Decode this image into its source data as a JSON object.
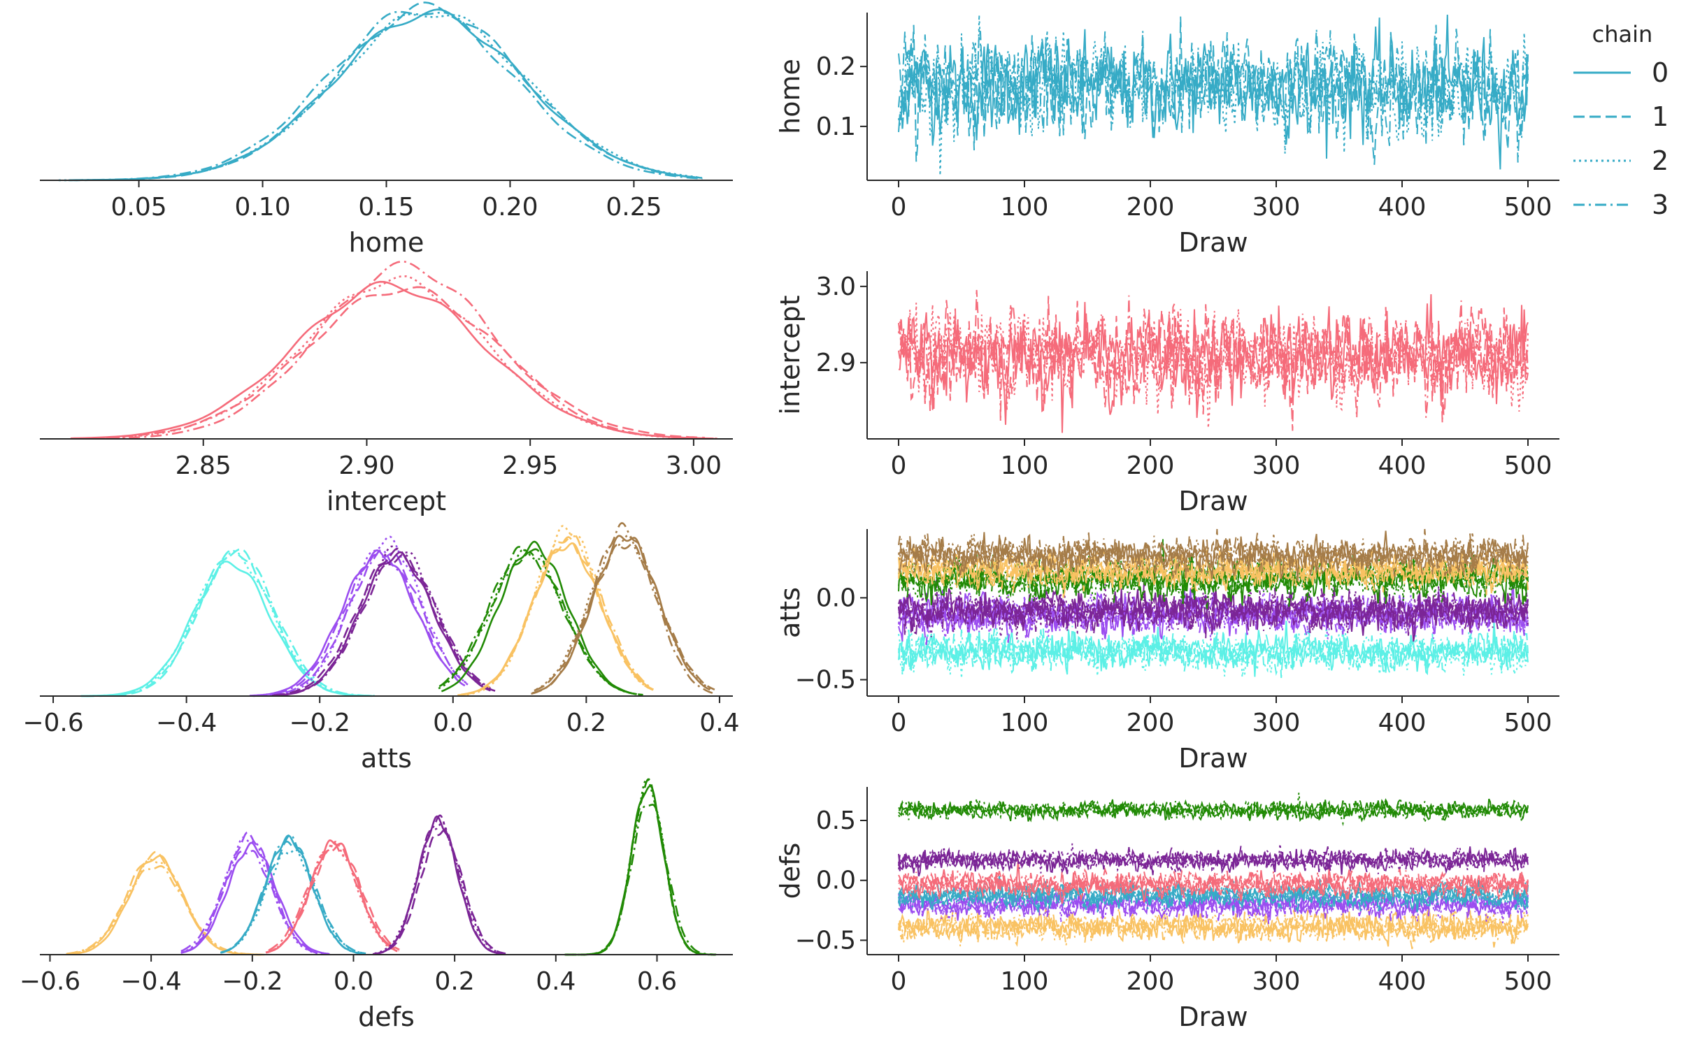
{
  "figure": {
    "legend": {
      "title": "chain",
      "placement": "top-right",
      "entries": [
        {
          "label": "0",
          "dash": "solid"
        },
        {
          "label": "1",
          "dash": "dashed"
        },
        {
          "label": "2",
          "dash": "dotted"
        },
        {
          "label": "3",
          "dash": "dashdot"
        }
      ]
    }
  },
  "chart_data": [
    {
      "type": "line",
      "panel": "density",
      "xlabel": "home",
      "xticks": [
        "0.05",
        "0.10",
        "0.15",
        "0.20",
        "0.25"
      ],
      "xtick_values": [
        0.05,
        0.1,
        0.15,
        0.2,
        0.25
      ],
      "xlim": [
        0.01,
        0.29
      ],
      "series": [
        {
          "color": "#36abc6",
          "mean": 0.166,
          "sd": 0.039,
          "xmin": 0.02,
          "xmax": 0.275
        }
      ]
    },
    {
      "type": "line",
      "panel": "trace",
      "xlabel": "Draw",
      "ylabel": "home",
      "xticks": [
        "0",
        "100",
        "200",
        "300",
        "400",
        "500"
      ],
      "xtick_values": [
        0,
        100,
        200,
        300,
        400,
        500
      ],
      "xlim": [
        -25,
        525
      ],
      "yticks": [
        "0.1",
        "0.2"
      ],
      "ytick_values": [
        0.1,
        0.2
      ],
      "ylim": [
        0.01,
        0.29
      ],
      "series": [
        {
          "color": "#36abc6",
          "mean": 0.166,
          "sd": 0.039
        }
      ]
    },
    {
      "type": "line",
      "panel": "density",
      "xlabel": "intercept",
      "xticks": [
        "2.85",
        "2.90",
        "2.95",
        "3.00"
      ],
      "xtick_values": [
        2.85,
        2.9,
        2.95,
        3.0
      ],
      "xlim": [
        2.8,
        3.012
      ],
      "series": [
        {
          "color": "#f56b7a",
          "mean": 2.909,
          "sd": 0.028,
          "xmin": 2.812,
          "xmax": 3.005
        }
      ]
    },
    {
      "type": "line",
      "panel": "trace",
      "xlabel": "Draw",
      "ylabel": "intercept",
      "xticks": [
        "0",
        "100",
        "200",
        "300",
        "400",
        "500"
      ],
      "xtick_values": [
        0,
        100,
        200,
        300,
        400,
        500
      ],
      "xlim": [
        -25,
        525
      ],
      "yticks": [
        "2.9",
        "3.0"
      ],
      "ytick_values": [
        2.9,
        3.0
      ],
      "ylim": [
        2.8,
        3.02
      ],
      "series": [
        {
          "color": "#f56b7a",
          "mean": 2.909,
          "sd": 0.028
        }
      ]
    },
    {
      "type": "line",
      "panel": "density",
      "xlabel": "atts",
      "xticks": [
        "−0.6",
        "−0.4",
        "−0.2",
        "0.0",
        "0.2",
        "0.4"
      ],
      "xtick_values": [
        -0.6,
        -0.4,
        -0.2,
        0.0,
        0.2,
        0.4
      ],
      "xlim": [
        -0.62,
        0.42
      ],
      "series": [
        {
          "color": "#5cf0e6",
          "mean": -0.33,
          "sd": 0.055,
          "xmin": -0.555,
          "xmax": -0.12
        },
        {
          "color": "#9b4df0",
          "mean": -0.105,
          "sd": 0.055,
          "xmin": -0.3,
          "xmax": 0.02
        },
        {
          "color": "#7b2596",
          "mean": -0.08,
          "sd": 0.055,
          "xmin": -0.27,
          "xmax": 0.06
        },
        {
          "color": "#218a05",
          "mean": 0.115,
          "sd": 0.055,
          "xmin": -0.02,
          "xmax": 0.28
        },
        {
          "color": "#f9c262",
          "mean": 0.17,
          "sd": 0.05,
          "xmin": 0.01,
          "xmax": 0.3
        },
        {
          "color": "#a57c48",
          "mean": 0.26,
          "sd": 0.05,
          "xmin": 0.12,
          "xmax": 0.39
        }
      ]
    },
    {
      "type": "line",
      "panel": "trace",
      "xlabel": "Draw",
      "ylabel": "atts",
      "xticks": [
        "0",
        "100",
        "200",
        "300",
        "400",
        "500"
      ],
      "xtick_values": [
        0,
        100,
        200,
        300,
        400,
        500
      ],
      "xlim": [
        -25,
        525
      ],
      "yticks": [
        "−0.5",
        "0.0"
      ],
      "ytick_values": [
        -0.5,
        0.0
      ],
      "ylim": [
        -0.6,
        0.42
      ],
      "series": [
        {
          "color": "#5cf0e6",
          "mean": -0.33,
          "sd": 0.055
        },
        {
          "color": "#9b4df0",
          "mean": -0.105,
          "sd": 0.055
        },
        {
          "color": "#7b2596",
          "mean": -0.08,
          "sd": 0.055
        },
        {
          "color": "#218a05",
          "mean": 0.115,
          "sd": 0.055
        },
        {
          "color": "#f9c262",
          "mean": 0.17,
          "sd": 0.05
        },
        {
          "color": "#a57c48",
          "mean": 0.26,
          "sd": 0.05
        }
      ]
    },
    {
      "type": "line",
      "panel": "density",
      "xlabel": "defs",
      "xticks": [
        "−0.6",
        "−0.4",
        "−0.2",
        "0.0",
        "0.2",
        "0.4",
        "0.6"
      ],
      "xtick_values": [
        -0.6,
        -0.4,
        -0.2,
        0.0,
        0.2,
        0.4,
        0.6
      ],
      "xlim": [
        -0.62,
        0.75
      ],
      "series": [
        {
          "color": "#f9c262",
          "mean": -0.39,
          "sd": 0.055,
          "xmin": -0.565,
          "xmax": -0.18
        },
        {
          "color": "#9b4df0",
          "mean": -0.205,
          "sd": 0.048,
          "xmin": -0.34,
          "xmax": -0.05
        },
        {
          "color": "#36abc6",
          "mean": -0.125,
          "sd": 0.048,
          "xmin": -0.26,
          "xmax": 0.02
        },
        {
          "color": "#f56b7a",
          "mean": -0.035,
          "sd": 0.048,
          "xmin": -0.17,
          "xmax": 0.09
        },
        {
          "color": "#7b2596",
          "mean": 0.17,
          "sd": 0.04,
          "xmin": 0.04,
          "xmax": 0.3
        },
        {
          "color": "#218a05",
          "mean": 0.585,
          "sd": 0.033,
          "xmin": 0.42,
          "xmax": 0.715
        }
      ]
    },
    {
      "type": "line",
      "panel": "trace",
      "xlabel": "Draw",
      "ylabel": "defs",
      "xticks": [
        "0",
        "100",
        "200",
        "300",
        "400",
        "500"
      ],
      "xtick_values": [
        0,
        100,
        200,
        300,
        400,
        500
      ],
      "xlim": [
        -25,
        525
      ],
      "yticks": [
        "−0.5",
        "0.0",
        "0.5"
      ],
      "ytick_values": [
        -0.5,
        0.0,
        0.5
      ],
      "ylim": [
        -0.62,
        0.78
      ],
      "series": [
        {
          "color": "#f9c262",
          "mean": -0.39,
          "sd": 0.055
        },
        {
          "color": "#9b4df0",
          "mean": -0.205,
          "sd": 0.048
        },
        {
          "color": "#36abc6",
          "mean": -0.125,
          "sd": 0.048
        },
        {
          "color": "#f56b7a",
          "mean": -0.035,
          "sd": 0.048
        },
        {
          "color": "#7b2596",
          "mean": 0.17,
          "sd": 0.04
        },
        {
          "color": "#218a05",
          "mean": 0.585,
          "sd": 0.033
        }
      ]
    }
  ]
}
